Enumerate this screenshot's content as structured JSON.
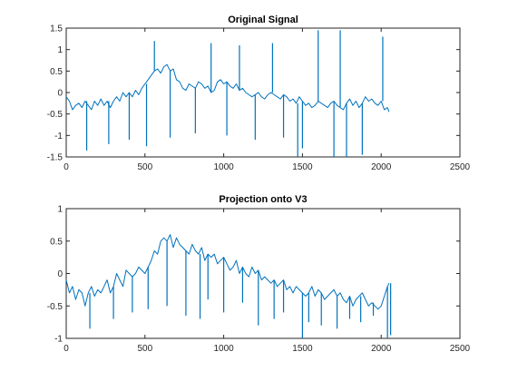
{
  "chart_data": [
    {
      "type": "line",
      "title": "Original Signal",
      "xlim": [
        0,
        2500
      ],
      "ylim": [
        -1.5,
        1.5
      ],
      "xticks": [
        0,
        500,
        1000,
        1500,
        2000,
        2500
      ],
      "yticks": [
        -1.5,
        -1,
        -0.5,
        0,
        0.5,
        1,
        1.5
      ],
      "xtick_labels": [
        "0",
        "500",
        "1000",
        "1500",
        "2000",
        "2500"
      ],
      "ytick_labels": [
        "-1.5",
        "-1",
        "-0.5",
        "0",
        "0.5",
        "1",
        "1.5"
      ],
      "grid": false,
      "series": [
        {
          "color": "#0072bd",
          "x": [
            0,
            20,
            40,
            60,
            80,
            100,
            120,
            140,
            160,
            180,
            200,
            220,
            240,
            260,
            280,
            300,
            320,
            340,
            360,
            380,
            400,
            420,
            440,
            460,
            480,
            500,
            520,
            540,
            560,
            580,
            600,
            620,
            640,
            660,
            680,
            700,
            720,
            740,
            760,
            780,
            800,
            820,
            840,
            860,
            880,
            900,
            920,
            940,
            960,
            980,
            1000,
            1020,
            1040,
            1060,
            1080,
            1100,
            1120,
            1140,
            1160,
            1180,
            1200,
            1220,
            1240,
            1260,
            1280,
            1300,
            1320,
            1340,
            1360,
            1380,
            1400,
            1420,
            1440,
            1460,
            1480,
            1500,
            1520,
            1540,
            1560,
            1580,
            1600,
            1620,
            1640,
            1660,
            1680,
            1700,
            1720,
            1740,
            1760,
            1780,
            1800,
            1820,
            1840,
            1860,
            1880,
            1900,
            1920,
            1940,
            1960,
            1980,
            2000,
            2020,
            2040,
            2050
          ],
          "y": [
            -0.1,
            -0.2,
            -0.4,
            -0.3,
            -0.25,
            -0.35,
            -0.2,
            -0.3,
            -0.4,
            -0.2,
            -0.3,
            -0.15,
            -0.3,
            -0.2,
            -0.35,
            -0.2,
            -0.1,
            -0.2,
            0.0,
            -0.1,
            0.0,
            -0.1,
            0.05,
            -0.05,
            0.1,
            0.2,
            0.3,
            0.4,
            0.5,
            0.55,
            0.45,
            0.6,
            0.65,
            0.5,
            0.55,
            0.3,
            0.25,
            0.1,
            0.05,
            0.2,
            0.15,
            0.1,
            0.25,
            0.2,
            0.1,
            0.15,
            0.0,
            0.05,
            0.25,
            0.3,
            0.2,
            0.25,
            0.15,
            0.1,
            0.2,
            0.05,
            0.1,
            0.0,
            -0.05,
            -0.1,
            -0.05,
            0.0,
            -0.1,
            -0.15,
            -0.05,
            0.0,
            -0.05,
            -0.1,
            -0.15,
            -0.05,
            -0.1,
            -0.2,
            -0.15,
            -0.25,
            -0.1,
            -0.2,
            -0.3,
            -0.25,
            -0.35,
            -0.3,
            -0.2,
            -0.25,
            -0.3,
            -0.35,
            -0.25,
            -0.2,
            -0.3,
            -0.35,
            -0.4,
            -0.25,
            -0.15,
            -0.3,
            -0.2,
            -0.35,
            -0.25,
            -0.1,
            -0.2,
            -0.15,
            -0.25,
            -0.3,
            -0.2,
            -0.4,
            -0.35,
            -0.45
          ]
        }
      ]
    },
    {
      "type": "line",
      "title": "Projection onto V3",
      "xlim": [
        0,
        2500
      ],
      "ylim": [
        -1,
        1
      ],
      "xticks": [
        0,
        500,
        1000,
        1500,
        2000,
        2500
      ],
      "yticks": [
        -1,
        -0.5,
        0,
        0.5,
        1
      ],
      "xtick_labels": [
        "0",
        "500",
        "1000",
        "1500",
        "2000",
        "2500"
      ],
      "ytick_labels": [
        "-1",
        "-0.5",
        "0",
        "0.5",
        "1"
      ],
      "grid": false,
      "series": [
        {
          "color": "#0072bd",
          "x": [
            0,
            20,
            40,
            60,
            80,
            100,
            120,
            140,
            160,
            180,
            200,
            220,
            240,
            260,
            280,
            300,
            320,
            340,
            360,
            380,
            400,
            420,
            440,
            460,
            480,
            500,
            520,
            540,
            560,
            580,
            600,
            620,
            640,
            660,
            680,
            700,
            720,
            740,
            760,
            780,
            800,
            820,
            840,
            860,
            880,
            900,
            920,
            940,
            960,
            980,
            1000,
            1020,
            1040,
            1060,
            1080,
            1100,
            1120,
            1140,
            1160,
            1180,
            1200,
            1220,
            1240,
            1260,
            1280,
            1300,
            1320,
            1340,
            1360,
            1380,
            1400,
            1420,
            1440,
            1460,
            1480,
            1500,
            1520,
            1540,
            1560,
            1580,
            1600,
            1620,
            1640,
            1660,
            1680,
            1700,
            1720,
            1740,
            1760,
            1780,
            1800,
            1820,
            1840,
            1860,
            1880,
            1900,
            1920,
            1940,
            1960,
            1980,
            2000,
            2020,
            2040,
            2050
          ],
          "y": [
            -0.1,
            -0.3,
            -0.2,
            -0.4,
            -0.25,
            -0.3,
            -0.5,
            -0.3,
            -0.2,
            -0.35,
            -0.25,
            -0.3,
            -0.2,
            -0.1,
            -0.3,
            -0.2,
            0.0,
            -0.1,
            -0.2,
            0.05,
            0.0,
            -0.05,
            0.0,
            0.1,
            0.05,
            0.0,
            0.1,
            0.2,
            0.35,
            0.3,
            0.5,
            0.55,
            0.5,
            0.6,
            0.4,
            0.55,
            0.45,
            0.4,
            0.35,
            0.3,
            0.45,
            0.35,
            0.3,
            0.4,
            0.2,
            0.3,
            0.25,
            0.3,
            0.15,
            0.2,
            0.25,
            0.15,
            0.05,
            0.1,
            0.2,
            0.0,
            0.1,
            0.0,
            -0.05,
            0.1,
            0.0,
            0.05,
            -0.1,
            -0.05,
            -0.1,
            -0.15,
            -0.1,
            -0.2,
            -0.15,
            -0.1,
            -0.25,
            -0.2,
            -0.3,
            -0.2,
            -0.25,
            -0.3,
            -0.35,
            -0.3,
            -0.2,
            -0.35,
            -0.25,
            -0.3,
            -0.4,
            -0.35,
            -0.3,
            -0.25,
            -0.35,
            -0.3,
            -0.4,
            -0.45,
            -0.35,
            -0.5,
            -0.4,
            -0.35,
            -0.3,
            -0.4,
            -0.5,
            -0.45,
            -0.5,
            -0.55,
            -0.5,
            -0.35,
            -0.2,
            -0.15
          ]
        }
      ]
    }
  ],
  "chart_spikes": [
    {
      "x": [
        130,
        270,
        400,
        510,
        560,
        660,
        820,
        920,
        1020,
        1100,
        1200,
        1310,
        1380,
        1470,
        1500,
        1600,
        1700,
        1740,
        1780,
        1880,
        2010
      ],
      "y": [
        -1.35,
        -1.2,
        -1.1,
        -1.25,
        1.2,
        -1.05,
        -0.95,
        1.15,
        -1.0,
        1.1,
        -1.1,
        1.15,
        -1.05,
        -1.5,
        -1.3,
        1.45,
        -1.5,
        1.45,
        -1.5,
        -1.45,
        1.3
      ]
    },
    {
      "x": [
        150,
        300,
        420,
        520,
        640,
        760,
        850,
        900,
        1000,
        1120,
        1220,
        1320,
        1380,
        1500,
        1540,
        1620,
        1720,
        1800,
        1870,
        1950,
        2040,
        2060
      ],
      "y": [
        -0.85,
        -0.7,
        -0.6,
        -0.55,
        -0.5,
        -0.65,
        -0.7,
        -0.4,
        -0.6,
        -0.45,
        -0.8,
        -0.7,
        -0.6,
        -1.0,
        -0.75,
        -0.8,
        -0.85,
        -0.7,
        -0.75,
        -0.65,
        -1.0,
        -0.95
      ]
    }
  ]
}
